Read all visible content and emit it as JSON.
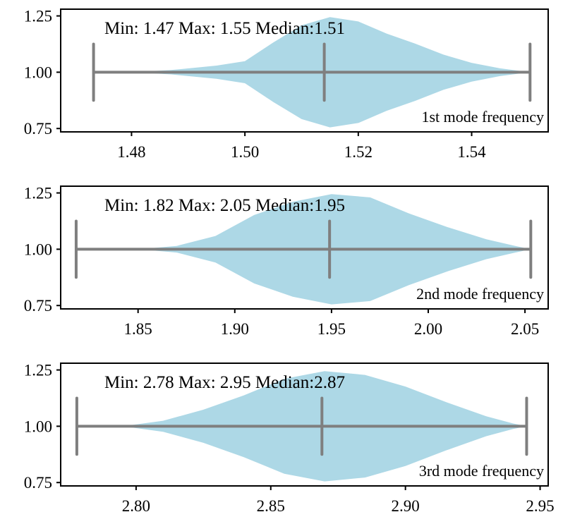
{
  "chart_data": [
    {
      "type": "violin",
      "orientation": "horizontal",
      "series_name": "1st mode frequency",
      "min": 1.4733,
      "max": 1.5503,
      "median": 1.514,
      "annotation": "Min: 1.47 Max: 1.55 Median:1.51",
      "label": "1st mode frequency",
      "xlim": [
        1.4675,
        1.5535
      ],
      "xticks": [
        1.48,
        1.5,
        1.52,
        1.54
      ],
      "xtick_labels": [
        "1.48",
        "1.50",
        "1.52",
        "1.54"
      ],
      "ylim": [
        0.735,
        1.28
      ],
      "yticks": [
        0.75,
        1.0,
        1.25
      ],
      "ytick_labels": [
        "0.75",
        "1.00",
        "1.25"
      ],
      "density_profile": [
        {
          "x": 1.4733,
          "w": 0.0
        },
        {
          "x": 1.48,
          "w": 0.0
        },
        {
          "x": 1.487,
          "w": 0.04
        },
        {
          "x": 1.495,
          "w": 0.12
        },
        {
          "x": 1.5,
          "w": 0.2
        },
        {
          "x": 1.505,
          "w": 0.54
        },
        {
          "x": 1.51,
          "w": 0.85
        },
        {
          "x": 1.515,
          "w": 1.0
        },
        {
          "x": 1.52,
          "w": 0.92
        },
        {
          "x": 1.525,
          "w": 0.7
        },
        {
          "x": 1.53,
          "w": 0.52
        },
        {
          "x": 1.535,
          "w": 0.32
        },
        {
          "x": 1.54,
          "w": 0.17
        },
        {
          "x": 1.545,
          "w": 0.07
        },
        {
          "x": 1.5503,
          "w": 0.0
        }
      ]
    },
    {
      "type": "violin",
      "orientation": "horizontal",
      "series_name": "2nd mode frequency",
      "min": 1.818,
      "max": 2.053,
      "median": 1.949,
      "annotation": "Min: 1.82 Max: 2.05 Median:1.95",
      "label": "2nd mode frequency",
      "xlim": [
        1.81,
        2.062
      ],
      "xticks": [
        1.85,
        1.9,
        1.95,
        2.0,
        2.05
      ],
      "xtick_labels": [
        "1.85",
        "1.90",
        "1.95",
        "2.00",
        "2.05"
      ],
      "ylim": [
        0.735,
        1.28
      ],
      "yticks": [
        0.75,
        1.0,
        1.25
      ],
      "ytick_labels": [
        "0.75",
        "1.00",
        "1.25"
      ],
      "density_profile": [
        {
          "x": 1.818,
          "w": 0.0
        },
        {
          "x": 1.85,
          "w": 0.0
        },
        {
          "x": 1.87,
          "w": 0.06
        },
        {
          "x": 1.89,
          "w": 0.24
        },
        {
          "x": 1.91,
          "w": 0.62
        },
        {
          "x": 1.93,
          "w": 0.86
        },
        {
          "x": 1.95,
          "w": 1.0
        },
        {
          "x": 1.97,
          "w": 0.94
        },
        {
          "x": 1.99,
          "w": 0.65
        },
        {
          "x": 2.01,
          "w": 0.4
        },
        {
          "x": 2.03,
          "w": 0.18
        },
        {
          "x": 2.045,
          "w": 0.06
        },
        {
          "x": 2.053,
          "w": 0.0
        }
      ]
    },
    {
      "type": "violin",
      "orientation": "horizontal",
      "series_name": "3rd mode frequency",
      "min": 2.778,
      "max": 2.945,
      "median": 2.869,
      "annotation": "Min: 2.78 Max: 2.95 Median:2.87",
      "label": "3rd mode frequency",
      "xlim": [
        2.772,
        2.953
      ],
      "xticks": [
        2.8,
        2.85,
        2.9,
        2.95
      ],
      "xtick_labels": [
        "2.80",
        "2.85",
        "2.90",
        "2.95"
      ],
      "ylim": [
        0.735,
        1.28
      ],
      "yticks": [
        0.75,
        1.0,
        1.25
      ],
      "ytick_labels": [
        "0.75",
        "1.00",
        "1.25"
      ],
      "density_profile": [
        {
          "x": 2.778,
          "w": 0.0
        },
        {
          "x": 2.795,
          "w": 0.0
        },
        {
          "x": 2.81,
          "w": 0.1
        },
        {
          "x": 2.825,
          "w": 0.3
        },
        {
          "x": 2.84,
          "w": 0.56
        },
        {
          "x": 2.855,
          "w": 0.86
        },
        {
          "x": 2.87,
          "w": 1.0
        },
        {
          "x": 2.885,
          "w": 0.93
        },
        {
          "x": 2.9,
          "w": 0.72
        },
        {
          "x": 2.915,
          "w": 0.44
        },
        {
          "x": 2.93,
          "w": 0.18
        },
        {
          "x": 2.94,
          "w": 0.05
        },
        {
          "x": 2.945,
          "w": 0.0
        }
      ]
    }
  ],
  "colors": {
    "violin_fill": "#add8e6",
    "stat_line": "#7f7f7f",
    "axis": "#000000",
    "background": "#ffffff"
  }
}
